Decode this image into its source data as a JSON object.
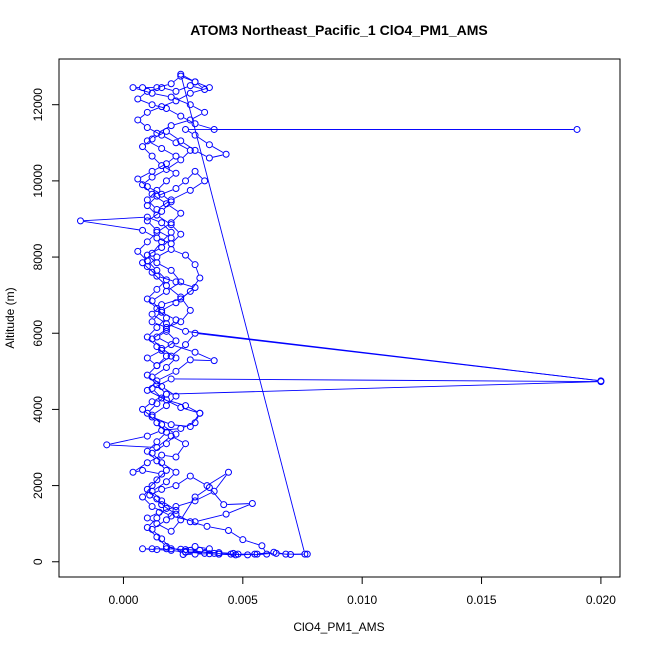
{
  "chart_data": {
    "type": "scatter",
    "title": "ATOM3 Northeast_Pacific_1 ClO4_PM1_AMS",
    "xlabel": "ClO4_PM1_AMS",
    "ylabel": "Altitude (m)",
    "xlim": [
      -0.0027,
      0.0208
    ],
    "ylim": [
      -400,
      13200
    ],
    "x_ticks": [
      0.0,
      0.005,
      0.01,
      0.015,
      0.02
    ],
    "x_tick_labels": [
      "0.000",
      "0.005",
      "0.010",
      "0.015",
      "0.020"
    ],
    "y_ticks": [
      0,
      2000,
      4000,
      6000,
      8000,
      10000,
      12000
    ],
    "y_tick_labels": [
      "0",
      "2000",
      "4000",
      "6000",
      "8000",
      "10000",
      "12000"
    ],
    "grid": false,
    "legend": "none",
    "color": "#0000ff",
    "series": [
      {
        "values": [
          [
            0.0077,
            200
          ],
          [
            0.0068,
            200
          ],
          [
            0.0063,
            250
          ],
          [
            0.0055,
            200
          ],
          [
            0.0047,
            180
          ],
          [
            0.004,
            200
          ],
          [
            0.0036,
            210
          ],
          [
            0.003,
            200
          ],
          [
            0.0025,
            190
          ],
          [
            0.0028,
            300
          ],
          [
            0.0038,
            220
          ],
          [
            0.0045,
            200
          ],
          [
            0.0052,
            180
          ],
          [
            0.006,
            200
          ],
          [
            0.0058,
            420
          ],
          [
            0.005,
            580
          ],
          [
            0.0044,
            820
          ],
          [
            0.0035,
            930
          ],
          [
            0.0028,
            1050
          ],
          [
            0.0022,
            1250
          ],
          [
            0.0016,
            1500
          ],
          [
            0.0011,
            1750
          ],
          [
            0.0016,
            1900
          ],
          [
            0.0022,
            2000
          ],
          [
            0.0028,
            2250
          ],
          [
            0.0035,
            2000
          ],
          [
            0.0044,
            2350
          ],
          [
            0.0038,
            1850
          ],
          [
            0.003,
            1600
          ],
          [
            0.0022,
            1450
          ],
          [
            0.0015,
            1300
          ],
          [
            0.001,
            1150
          ],
          [
            0.0014,
            1000
          ],
          [
            0.002,
            800
          ],
          [
            0.0024,
            1100
          ],
          [
            0.003,
            1700
          ],
          [
            0.0036,
            1950
          ],
          [
            0.0042,
            1500
          ],
          [
            0.0054,
            1530
          ],
          [
            0.0043,
            1250
          ],
          [
            0.003,
            1050
          ],
          [
            0.002,
            1200
          ],
          [
            0.0012,
            1450
          ],
          [
            0.0008,
            1700
          ],
          [
            0.0012,
            2000
          ],
          [
            0.0016,
            2300
          ],
          [
            0.0008,
            2400
          ],
          [
            0.0004,
            2350
          ],
          [
            0.001,
            2600
          ],
          [
            0.0016,
            2800
          ],
          [
            0.0022,
            2750
          ],
          [
            0.0026,
            3100
          ],
          [
            0.002,
            3300
          ],
          [
            0.0014,
            3000
          ],
          [
            -0.0007,
            3070
          ],
          [
            0.001,
            3300
          ],
          [
            0.0016,
            3450
          ],
          [
            0.0024,
            3500
          ],
          [
            0.003,
            3650
          ],
          [
            0.0032,
            3900
          ],
          [
            0.0024,
            4050
          ],
          [
            0.0016,
            4300
          ],
          [
            0.0012,
            4550
          ],
          [
            0.002,
            4800
          ],
          [
            0.02,
            4730
          ],
          [
            0.0018,
            4400
          ],
          [
            0.0012,
            4200
          ],
          [
            0.0008,
            4000
          ],
          [
            0.0012,
            3800
          ],
          [
            0.002,
            3600
          ],
          [
            0.0028,
            3550
          ],
          [
            0.0032,
            3900
          ],
          [
            0.0026,
            4100
          ],
          [
            0.0018,
            4250
          ],
          [
            0.001,
            4500
          ],
          [
            0.0014,
            4750
          ],
          [
            0.0022,
            5000
          ],
          [
            0.0028,
            5300
          ],
          [
            0.0038,
            5280
          ],
          [
            0.003,
            5500
          ],
          [
            0.002,
            5700
          ],
          [
            0.0014,
            5900
          ],
          [
            0.0018,
            6050
          ],
          [
            0.0022,
            5800
          ],
          [
            0.0016,
            5550
          ],
          [
            0.001,
            5350
          ],
          [
            0.0014,
            5150
          ],
          [
            0.002,
            5400
          ],
          [
            0.0026,
            5700
          ],
          [
            0.003,
            6000
          ],
          [
            0.02,
            4750
          ],
          [
            0.0026,
            6050
          ],
          [
            0.0018,
            6250
          ],
          [
            0.0012,
            6500
          ],
          [
            0.0016,
            6750
          ],
          [
            0.0024,
            6900
          ],
          [
            0.003,
            7200
          ],
          [
            0.0022,
            7350
          ],
          [
            0.0014,
            7500
          ],
          [
            0.001,
            7750
          ],
          [
            0.0014,
            8000
          ],
          [
            0.002,
            8200
          ],
          [
            0.0026,
            8050
          ],
          [
            0.003,
            7800
          ],
          [
            0.0032,
            7450
          ],
          [
            0.0028,
            7100
          ],
          [
            0.0022,
            6800
          ],
          [
            0.0016,
            6600
          ],
          [
            0.0012,
            6300
          ],
          [
            0.0018,
            6150
          ],
          [
            0.0024,
            6300
          ],
          [
            0.0028,
            6600
          ],
          [
            0.0024,
            6950
          ],
          [
            0.0018,
            7250
          ],
          [
            0.0012,
            7600
          ],
          [
            0.0008,
            7850
          ],
          [
            0.0012,
            8100
          ],
          [
            0.0016,
            8400
          ],
          [
            0.002,
            8650
          ],
          [
            0.0016,
            8900
          ],
          [
            0.001,
            9050
          ],
          [
            -0.0018,
            8950
          ],
          [
            0.0008,
            8700
          ],
          [
            0.0014,
            8500
          ],
          [
            0.002,
            8350
          ],
          [
            0.0024,
            8600
          ],
          [
            0.002,
            8850
          ],
          [
            0.0014,
            9100
          ],
          [
            0.001,
            9350
          ],
          [
            0.0014,
            9600
          ],
          [
            0.0022,
            9800
          ],
          [
            0.0026,
            10000
          ],
          [
            0.003,
            10250
          ],
          [
            0.0034,
            10000
          ],
          [
            0.0028,
            9750
          ],
          [
            0.002,
            9500
          ],
          [
            0.0014,
            9250
          ],
          [
            0.001,
            9500
          ],
          [
            0.0014,
            9750
          ],
          [
            0.0018,
            10000
          ],
          [
            0.0022,
            10200
          ],
          [
            0.0016,
            10400
          ],
          [
            0.0012,
            10650
          ],
          [
            0.0008,
            10900
          ],
          [
            0.0012,
            11100
          ],
          [
            0.0018,
            11300
          ],
          [
            0.0024,
            11050
          ],
          [
            0.003,
            10800
          ],
          [
            0.0036,
            10600
          ],
          [
            0.0043,
            10700
          ],
          [
            0.0036,
            10950
          ],
          [
            0.003,
            11200
          ],
          [
            0.0026,
            11350
          ],
          [
            0.019,
            11350
          ],
          [
            0.0038,
            11350
          ],
          [
            0.003,
            11500
          ],
          [
            0.0024,
            11700
          ],
          [
            0.0018,
            11900
          ],
          [
            0.0012,
            12000
          ],
          [
            0.0006,
            12150
          ],
          [
            0.001,
            12350
          ],
          [
            0.0016,
            12450
          ],
          [
            0.0022,
            12350
          ],
          [
            0.0028,
            12500
          ],
          [
            0.0034,
            12400
          ],
          [
            0.003,
            12600
          ],
          [
            0.0024,
            12750
          ],
          [
            0.002,
            12550
          ],
          [
            0.0014,
            12450
          ],
          [
            0.0008,
            12450
          ],
          [
            0.0004,
            12450
          ],
          [
            0.0012,
            12300
          ],
          [
            0.002,
            12200
          ],
          [
            0.0028,
            12000
          ],
          [
            0.0034,
            11800
          ],
          [
            0.0028,
            11600
          ],
          [
            0.002,
            11450
          ],
          [
            0.0014,
            11250
          ],
          [
            0.001,
            11050
          ],
          [
            0.0016,
            10850
          ],
          [
            0.0022,
            10650
          ],
          [
            0.0018,
            10450
          ],
          [
            0.0012,
            10250
          ],
          [
            0.0006,
            10050
          ],
          [
            0.001,
            9850
          ],
          [
            0.0016,
            9650
          ],
          [
            0.002,
            9450
          ],
          [
            0.0016,
            9200
          ],
          [
            0.001,
            8950
          ],
          [
            0.0014,
            8700
          ],
          [
            0.002,
            8500
          ],
          [
            0.0016,
            8250
          ],
          [
            0.001,
            8050
          ],
          [
            0.0014,
            7850
          ],
          [
            0.002,
            7650
          ],
          [
            0.0024,
            7350
          ],
          [
            0.0018,
            7100
          ],
          [
            0.0012,
            6850
          ],
          [
            0.0016,
            6550
          ],
          [
            0.0022,
            6350
          ],
          [
            0.0018,
            6100
          ],
          [
            0.0012,
            5850
          ],
          [
            0.0016,
            5600
          ],
          [
            0.0022,
            5350
          ],
          [
            0.0018,
            5100
          ],
          [
            0.0012,
            4850
          ],
          [
            0.0016,
            4600
          ],
          [
            0.0022,
            4350
          ],
          [
            0.0018,
            4100
          ],
          [
            0.0012,
            3850
          ],
          [
            0.0016,
            3600
          ],
          [
            0.0022,
            3350
          ],
          [
            0.0018,
            3100
          ],
          [
            0.0012,
            2850
          ],
          [
            0.0016,
            2600
          ],
          [
            0.0022,
            2350
          ],
          [
            0.0018,
            2100
          ],
          [
            0.0012,
            1850
          ],
          [
            0.0016,
            1600
          ],
          [
            0.0022,
            1350
          ],
          [
            0.0018,
            1100
          ],
          [
            0.0012,
            850
          ],
          [
            0.0016,
            600
          ],
          [
            0.002,
            340
          ],
          [
            0.0026,
            320
          ],
          [
            0.0032,
            300
          ],
          [
            0.0036,
            340
          ],
          [
            0.003,
            400
          ],
          [
            0.0024,
            330
          ],
          [
            0.0018,
            340
          ],
          [
            0.0012,
            340
          ],
          [
            0.0008,
            340
          ],
          [
            0.0014,
            320
          ],
          [
            0.002,
            300
          ],
          [
            0.0026,
            250
          ],
          [
            0.0034,
            220
          ],
          [
            0.004,
            200
          ],
          [
            0.0048,
            200
          ],
          [
            0.0056,
            200
          ],
          [
            0.0064,
            220
          ],
          [
            0.007,
            190
          ],
          [
            0.0076,
            200
          ],
          [
            0.0024,
            12800
          ],
          [
            0.003,
            12600
          ],
          [
            0.0036,
            12450
          ],
          [
            0.0028,
            12300
          ],
          [
            0.0022,
            12100
          ],
          [
            0.0016,
            11950
          ],
          [
            0.001,
            11800
          ],
          [
            0.0006,
            11600
          ],
          [
            0.001,
            11400
          ],
          [
            0.0016,
            11200
          ],
          [
            0.0022,
            11000
          ],
          [
            0.0028,
            10800
          ],
          [
            0.0024,
            10550
          ],
          [
            0.0018,
            10300
          ],
          [
            0.0012,
            10100
          ],
          [
            0.0008,
            9900
          ],
          [
            0.0012,
            9650
          ],
          [
            0.0018,
            9400
          ],
          [
            0.0024,
            9150
          ],
          [
            0.002,
            8900
          ],
          [
            0.0014,
            8650
          ],
          [
            0.001,
            8400
          ],
          [
            0.0006,
            8150
          ],
          [
            0.001,
            7900
          ],
          [
            0.0014,
            7650
          ],
          [
            0.0018,
            7400
          ],
          [
            0.0014,
            7150
          ],
          [
            0.001,
            6900
          ],
          [
            0.0014,
            6650
          ],
          [
            0.0018,
            6400
          ],
          [
            0.0014,
            6150
          ],
          [
            0.001,
            5900
          ],
          [
            0.0014,
            5650
          ],
          [
            0.0018,
            5400
          ],
          [
            0.0014,
            5150
          ],
          [
            0.001,
            4900
          ],
          [
            0.0014,
            4650
          ],
          [
            0.0018,
            4400
          ],
          [
            0.0014,
            4150
          ],
          [
            0.001,
            3900
          ],
          [
            0.0014,
            3650
          ],
          [
            0.0018,
            3400
          ],
          [
            0.0014,
            3150
          ],
          [
            0.001,
            2900
          ],
          [
            0.0014,
            2650
          ],
          [
            0.0018,
            2400
          ],
          [
            0.0014,
            2150
          ],
          [
            0.001,
            1900
          ],
          [
            0.0014,
            1650
          ],
          [
            0.0018,
            1400
          ],
          [
            0.0014,
            1150
          ],
          [
            0.001,
            900
          ],
          [
            0.0014,
            650
          ],
          [
            0.0018,
            400
          ],
          [
            0.0026,
            260
          ],
          [
            0.004,
            240
          ],
          [
            0.0046,
            220
          ]
        ]
      }
    ]
  }
}
